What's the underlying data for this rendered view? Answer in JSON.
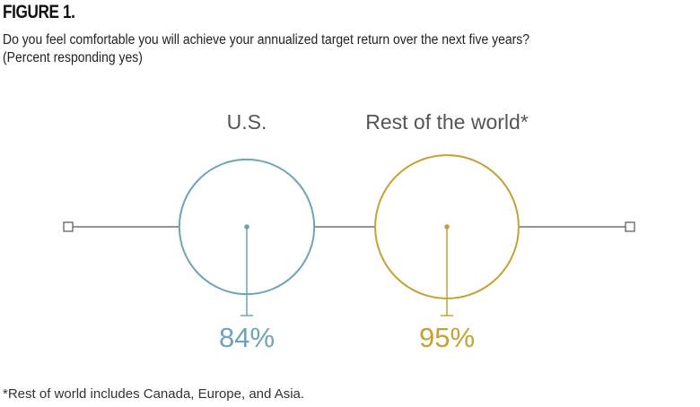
{
  "figure_label": "FIGURE 1.",
  "question": "Do you feel comfortable you will achieve your annualized target return over the next five years?",
  "subquestion": "(Percent responding yes)",
  "footnote": "*Rest of world includes Canada, Europe, and Asia.",
  "colors": {
    "us": "#6fa3b8",
    "rest": "#c4a233",
    "axis": "#555555"
  },
  "chart_data": {
    "type": "proportional-circles",
    "title": "",
    "ylim": [
      0,
      100
    ],
    "series": [
      {
        "name": "U.S.",
        "value": 84,
        "label": "84%"
      },
      {
        "name": "Rest of the world*",
        "value": 95,
        "label": "95%"
      }
    ]
  }
}
